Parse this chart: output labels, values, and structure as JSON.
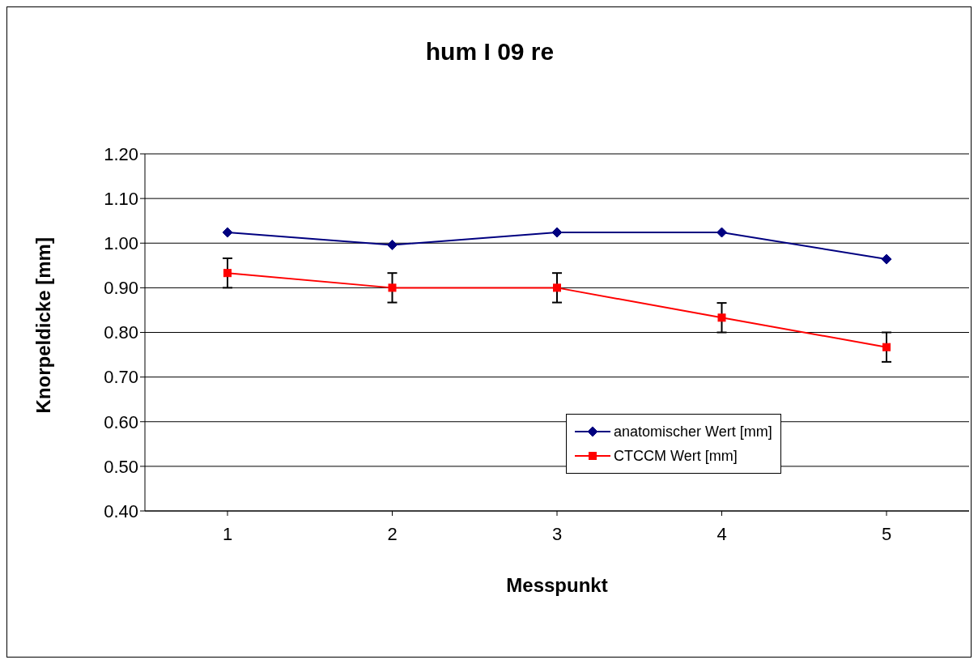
{
  "chart_data": {
    "type": "line",
    "title": "hum I 09 re",
    "xlabel": "Messpunkt",
    "ylabel": "Knorpeldicke [mm]",
    "categories": [
      "1",
      "2",
      "3",
      "4",
      "5"
    ],
    "series": [
      {
        "name": "anatomischer Wert [mm]",
        "color": "#000080",
        "marker": "diamond",
        "values": [
          1.024,
          0.996,
          1.024,
          1.024,
          0.964
        ]
      },
      {
        "name": "CTCCM Wert [mm]",
        "color": "#ff0000",
        "marker": "square",
        "values": [
          0.933,
          0.9,
          0.9,
          0.833,
          0.767
        ],
        "errors": [
          0.033,
          0.033,
          0.033,
          0.033,
          0.033
        ]
      }
    ],
    "ylim": [
      0.4,
      1.2
    ],
    "yticks": [
      {
        "value": 0.4,
        "label": "0.40"
      },
      {
        "value": 0.5,
        "label": "0.50"
      },
      {
        "value": 0.6,
        "label": "0.60"
      },
      {
        "value": 0.7,
        "label": "0.70"
      },
      {
        "value": 0.8,
        "label": "0.80"
      },
      {
        "value": 0.9,
        "label": "0.90"
      },
      {
        "value": 1.0,
        "label": "1.00"
      },
      {
        "value": 1.1,
        "label": "1.10"
      },
      {
        "value": 1.2,
        "label": "1.20"
      }
    ],
    "grid": "y",
    "legend": "bottom right"
  }
}
